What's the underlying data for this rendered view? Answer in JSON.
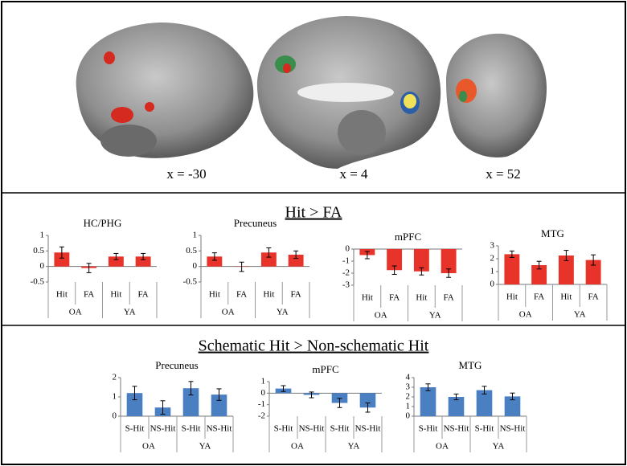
{
  "brain_labels": [
    "x = -30",
    "x = 4",
    "x = 52"
  ],
  "sections": [
    "Hit > FA",
    "Schematic Hit > Non-schematic Hit"
  ],
  "chart_data": [
    {
      "type": "bar",
      "title": "HC/PHG",
      "categories": [
        "Hit",
        "FA",
        "Hit",
        "FA"
      ],
      "groups": [
        "OA",
        "YA"
      ],
      "values": [
        0.45,
        -0.05,
        0.32,
        0.32
      ],
      "errors": [
        0.18,
        0.15,
        0.1,
        0.1
      ],
      "color": "#e8332a",
      "ylim": [
        -0.5,
        1
      ],
      "yticks": [
        -0.5,
        0,
        0.5,
        1
      ]
    },
    {
      "type": "bar",
      "title": "Precuneus",
      "categories": [
        "Hit",
        "FA",
        "Hit",
        "FA"
      ],
      "groups": [
        "OA",
        "YA"
      ],
      "values": [
        0.32,
        -0.01,
        0.45,
        0.38
      ],
      "errors": [
        0.12,
        0.15,
        0.15,
        0.12
      ],
      "color": "#e8332a",
      "ylim": [
        -0.5,
        1
      ],
      "yticks": [
        -0.5,
        0,
        0.5,
        1
      ]
    },
    {
      "type": "bar",
      "title": "mPFC",
      "categories": [
        "Hit",
        "FA",
        "Hit",
        "FA"
      ],
      "groups": [
        "OA",
        "YA"
      ],
      "values": [
        -0.5,
        -1.75,
        -1.85,
        -2.0
      ],
      "errors": [
        0.3,
        0.35,
        0.3,
        0.35
      ],
      "color": "#e8332a",
      "ylim": [
        -3,
        0
      ],
      "yticks": [
        -3,
        -2,
        -1,
        0
      ]
    },
    {
      "type": "bar",
      "title": "MTG",
      "categories": [
        "Hit",
        "FA",
        "Hit",
        "FA"
      ],
      "groups": [
        "OA",
        "YA"
      ],
      "values": [
        2.35,
        1.5,
        2.25,
        1.9
      ],
      "errors": [
        0.25,
        0.3,
        0.4,
        0.4
      ],
      "color": "#e8332a",
      "ylim": [
        0,
        3
      ],
      "yticks": [
        0,
        1,
        2,
        3
      ]
    },
    {
      "type": "bar",
      "title": "Precuneus",
      "categories": [
        "S-Hit",
        "NS-Hit",
        "S-Hit",
        "NS-Hit"
      ],
      "groups": [
        "OA",
        "YA"
      ],
      "values": [
        1.2,
        0.45,
        1.45,
        1.12
      ],
      "errors": [
        0.35,
        0.35,
        0.35,
        0.3
      ],
      "color": "#4a7fc1",
      "ylim": [
        0,
        2
      ],
      "yticks": [
        0,
        1,
        2
      ]
    },
    {
      "type": "bar",
      "title": "mPFC",
      "categories": [
        "S-Hit",
        "NS-Hit",
        "S-Hit",
        "NS-Hit"
      ],
      "groups": [
        "OA",
        "YA"
      ],
      "values": [
        0.4,
        -0.15,
        -0.85,
        -1.25
      ],
      "errors": [
        0.25,
        0.25,
        0.4,
        0.4
      ],
      "color": "#4a7fc1",
      "ylim": [
        -2,
        1
      ],
      "yticks": [
        -2,
        -1,
        0,
        1
      ]
    },
    {
      "type": "bar",
      "title": "MTG",
      "categories": [
        "S-Hit",
        "NS-Hit",
        "S-Hit",
        "NS-Hit"
      ],
      "groups": [
        "OA",
        "YA"
      ],
      "values": [
        3.0,
        2.0,
        2.7,
        2.05
      ],
      "errors": [
        0.35,
        0.3,
        0.4,
        0.35
      ],
      "color": "#4a7fc1",
      "ylim": [
        0,
        4
      ],
      "yticks": [
        0,
        1,
        2,
        3,
        4
      ]
    }
  ]
}
